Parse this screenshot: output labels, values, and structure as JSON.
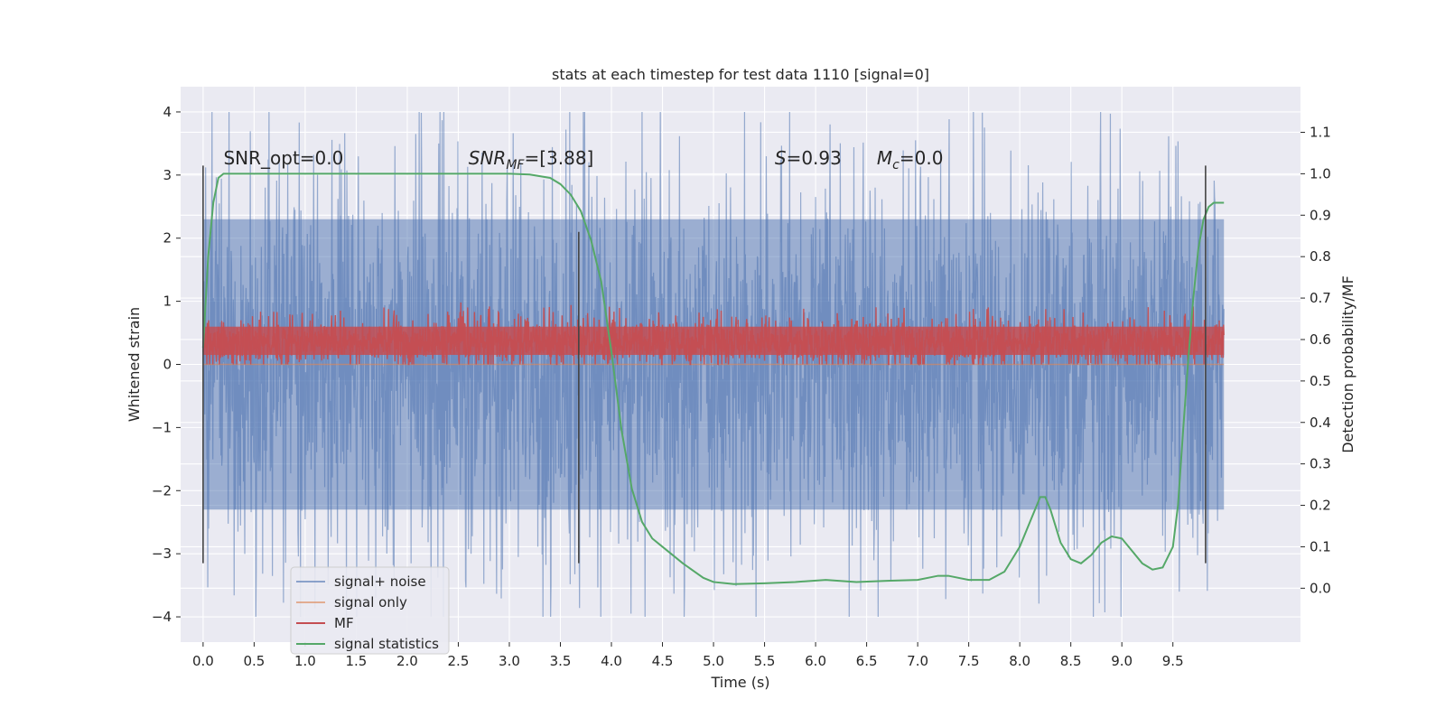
{
  "chart_data": {
    "type": "line",
    "title": "stats at each timestep for test data 1110 [signal=0]",
    "xlabel": "Time (s)",
    "ylabel": "Whitened strain",
    "y2label": "Detection probability/MF",
    "xlim": [
      -0.22,
      10.75
    ],
    "ylim": [
      -4.4,
      4.4
    ],
    "y2lim": [
      -0.13,
      1.21
    ],
    "xticks": [
      0.0,
      0.5,
      1.0,
      1.5,
      2.0,
      2.5,
      3.0,
      3.5,
      4.0,
      4.5,
      5.0,
      5.5,
      6.0,
      6.5,
      7.0,
      7.5,
      8.0,
      8.5,
      9.0,
      9.5
    ],
    "yticks": [
      -4,
      -3,
      -2,
      -1,
      0,
      1,
      2,
      3,
      4
    ],
    "ytick_labels": [
      "−4",
      "−3",
      "−2",
      "−1",
      "0",
      "1",
      "2",
      "3",
      "4"
    ],
    "y2ticks": [
      0.0,
      0.1,
      0.2,
      0.3,
      0.4,
      0.5,
      0.6,
      0.7,
      0.8,
      0.9,
      1.0,
      1.1
    ],
    "grid": true,
    "legend_position": "lower-left",
    "annotations": [
      {
        "x": 0.2,
        "y": 3.2,
        "text": "SNR_opt=0.0"
      },
      {
        "x": 2.6,
        "y": 3.2,
        "main": "SNR",
        "sub": "MF",
        "rest": "=[3.88]"
      },
      {
        "x": 5.6,
        "y": 3.2,
        "main": "S",
        "rest": "=0.93"
      },
      {
        "x": 6.6,
        "y": 3.2,
        "main": "M",
        "sub": "c",
        "rest": "=0.0"
      }
    ],
    "vertical_markers": [
      {
        "x": 0.0,
        "ymin": -3.15,
        "ymax": 3.15
      },
      {
        "x": 3.68,
        "ymin": -3.15,
        "ymax": 2.1
      },
      {
        "x": 9.82,
        "ymin": -3.15,
        "ymax": 3.15
      }
    ],
    "series": [
      {
        "name": "signal+ noise",
        "color": "#4c72b0",
        "axis": "left",
        "style": "noise",
        "x_range": [
          0.0,
          10.0
        ],
        "envelope": [
          -2.3,
          2.3
        ],
        "spike_max": 4.0,
        "spike_min": -4.0
      },
      {
        "name": "signal only",
        "color": "#dd8452",
        "axis": "left",
        "x": [
          0.0,
          10.0
        ],
        "y": [
          0.0,
          0.0
        ]
      },
      {
        "name": "MF",
        "color": "#c44e52",
        "axis": "left",
        "style": "noise",
        "x_range": [
          0.0,
          10.0
        ],
        "envelope": [
          0.05,
          0.65
        ],
        "spike_max": 1.0,
        "spike_min": 0.0
      },
      {
        "name": "signal statistics",
        "color": "#55a868",
        "axis": "right",
        "x": [
          0.0,
          0.05,
          0.1,
          0.15,
          0.2,
          0.5,
          1.0,
          1.5,
          2.0,
          2.5,
          3.0,
          3.2,
          3.4,
          3.5,
          3.6,
          3.7,
          3.8,
          3.9,
          4.0,
          4.1,
          4.2,
          4.3,
          4.4,
          4.5,
          4.7,
          4.9,
          5.0,
          5.2,
          5.5,
          5.8,
          6.1,
          6.4,
          6.7,
          7.0,
          7.2,
          7.3,
          7.5,
          7.7,
          7.85,
          8.0,
          8.1,
          8.2,
          8.25,
          8.3,
          8.4,
          8.5,
          8.6,
          8.7,
          8.8,
          8.9,
          9.0,
          9.1,
          9.2,
          9.3,
          9.4,
          9.5,
          9.55,
          9.6,
          9.65,
          9.7,
          9.75,
          9.8,
          9.85,
          9.9,
          9.95,
          10.0
        ],
        "y": [
          0.58,
          0.8,
          0.93,
          0.99,
          1.0,
          1.0,
          1.0,
          1.0,
          1.0,
          1.0,
          1.0,
          0.998,
          0.99,
          0.975,
          0.95,
          0.91,
          0.84,
          0.74,
          0.57,
          0.38,
          0.24,
          0.16,
          0.12,
          0.1,
          0.06,
          0.025,
          0.015,
          0.01,
          0.012,
          0.015,
          0.02,
          0.015,
          0.018,
          0.02,
          0.03,
          0.03,
          0.02,
          0.02,
          0.04,
          0.1,
          0.16,
          0.22,
          0.22,
          0.19,
          0.11,
          0.07,
          0.06,
          0.08,
          0.11,
          0.125,
          0.12,
          0.09,
          0.06,
          0.045,
          0.05,
          0.1,
          0.2,
          0.38,
          0.55,
          0.7,
          0.82,
          0.89,
          0.92,
          0.93,
          0.93,
          0.93
        ]
      }
    ]
  }
}
